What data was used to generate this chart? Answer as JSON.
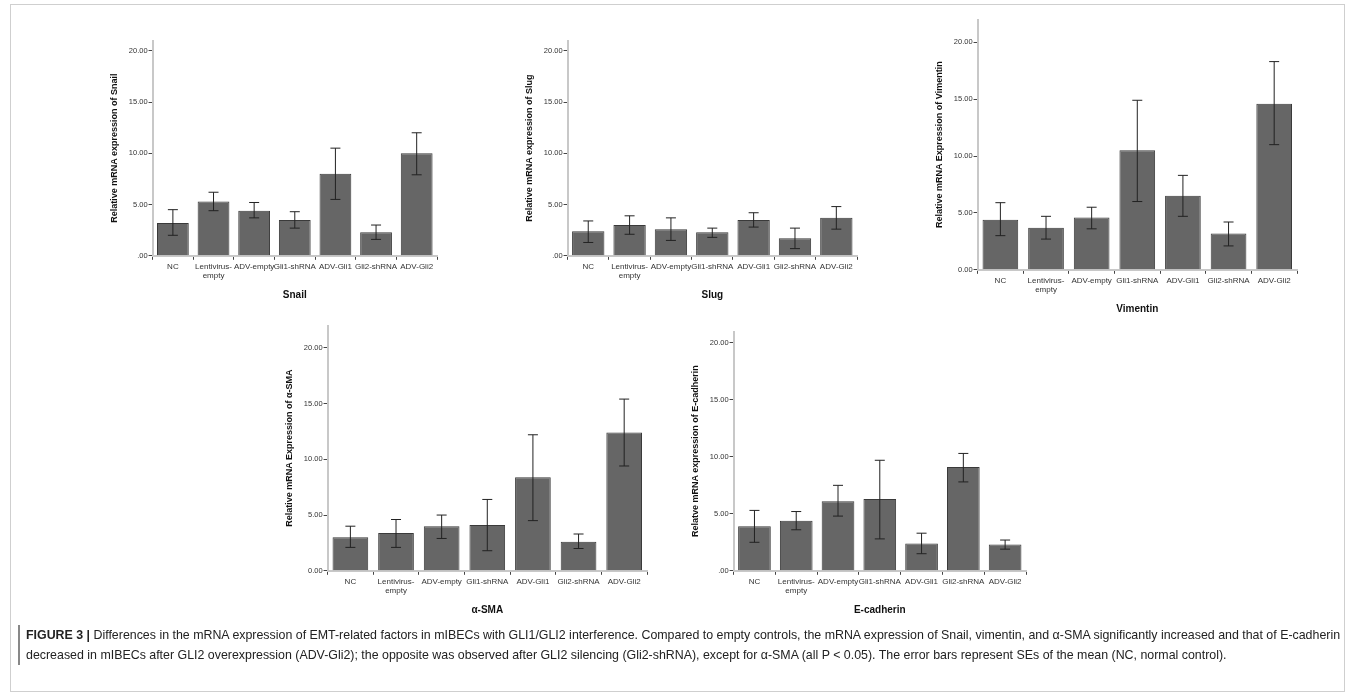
{
  "chart_data": [
    {
      "type": "bar",
      "xlabel": "Snail",
      "ylabel": "Relative mRNA expression of Snail",
      "categories": [
        "NC",
        "Lentivirus-empty",
        "ADV-empty",
        "Gli1-shRNA",
        "ADV-Gli1",
        "Gli2-shRNA",
        "ADV-Gli2"
      ],
      "color": "#666666",
      "values": [
        3.2,
        5.3,
        4.4,
        3.5,
        8.0,
        2.3,
        10.0
      ],
      "errors": [
        [
          2.0,
          4.5
        ],
        [
          4.4,
          6.2
        ],
        [
          3.7,
          5.2
        ],
        [
          2.7,
          4.3
        ],
        [
          5.5,
          10.5
        ],
        [
          1.6,
          3.0
        ],
        [
          7.9,
          12.0
        ]
      ],
      "ylim": [
        0,
        21
      ],
      "yticks": [
        {
          "value": 0,
          "label": ".00"
        },
        {
          "value": 5,
          "label": "5.00"
        },
        {
          "value": 10,
          "label": "10.00"
        },
        {
          "value": 15,
          "label": "15.00"
        },
        {
          "value": 20,
          "label": "20.00"
        }
      ],
      "annotations": [
        "FIGURE 3 |",
        "Differences in the mRNA expression of EMT-related factors in mIBECs with GLI1/GLI2 interference. Compared to empty controls, the mRNA expression of Snail, vimentin, and α-SMA significantly increased and that of E-cadherin decreased in mIBECs after GLI2 overexpression (ADV-Gli2); the opposite was observed after GLI2 silencing (Gli2-shRNA), except for α-SMA (all P < 0.05). The error bars represent SEs of the mean (NC, normal control)."
      ]
    },
    {
      "type": "bar",
      "xlabel": "Slug",
      "ylabel": "Relative mRNA expression of Slug",
      "categories": [
        "NC",
        "Lentivirus-empty",
        "ADV-empty",
        "Gli1-shRNA",
        "ADV-Gli1",
        "Gli2-shRNA",
        "ADV-Gli2"
      ],
      "color": "#666666",
      "values": [
        2.4,
        3.0,
        2.6,
        2.3,
        3.5,
        1.7,
        3.7
      ],
      "errors": [
        [
          1.3,
          3.4
        ],
        [
          2.1,
          3.9
        ],
        [
          1.5,
          3.7
        ],
        [
          1.8,
          2.7
        ],
        [
          2.8,
          4.2
        ],
        [
          0.7,
          2.7
        ],
        [
          2.6,
          4.8
        ]
      ],
      "ylim": [
        0,
        21
      ],
      "yticks": [
        {
          "value": 0,
          "label": ".00"
        },
        {
          "value": 5,
          "label": "5.00"
        },
        {
          "value": 10,
          "label": "10.00"
        },
        {
          "value": 15,
          "label": "15.00"
        },
        {
          "value": 20,
          "label": "20.00"
        }
      ]
    },
    {
      "type": "bar",
      "xlabel": "Vimentin",
      "ylabel": "Relative mRNA Expression of Vimentin",
      "categories": [
        "NC",
        "Lentivirus-empty",
        "ADV-empty",
        "Gli1-shRNA",
        "ADV-Gli1",
        "Gli2-shRNA",
        "ADV-Gli2"
      ],
      "color": "#666666",
      "values": [
        4.4,
        3.7,
        4.6,
        10.5,
        6.5,
        3.2,
        14.6
      ],
      "errors": [
        [
          3.0,
          5.9
        ],
        [
          2.7,
          4.7
        ],
        [
          3.6,
          5.5
        ],
        [
          6.0,
          14.9
        ],
        [
          4.7,
          8.3
        ],
        [
          2.1,
          4.2
        ],
        [
          11.0,
          18.3
        ]
      ],
      "ylim": [
        0,
        22
      ],
      "yticks": [
        {
          "value": 0,
          "label": "0.00"
        },
        {
          "value": 5,
          "label": "5.00"
        },
        {
          "value": 10,
          "label": "10.00"
        },
        {
          "value": 15,
          "label": "15.00"
        },
        {
          "value": 20,
          "label": "20.00"
        }
      ]
    },
    {
      "type": "bar",
      "xlabel": "α-SMA",
      "ylabel": "Relative mRNA Expression of α-SMA",
      "categories": [
        "NC",
        "Lentivirus-empty",
        "ADV-empty",
        "Gli1-shRNA",
        "ADV-Gli1",
        "Gli2-shRNA",
        "ADV-Gli2"
      ],
      "color": "#666666",
      "values": [
        3.0,
        3.4,
        4.0,
        4.1,
        8.4,
        2.6,
        12.4
      ],
      "errors": [
        [
          2.1,
          4.0
        ],
        [
          2.1,
          4.6
        ],
        [
          2.9,
          5.0
        ],
        [
          1.8,
          6.4
        ],
        [
          4.5,
          12.2
        ],
        [
          2.0,
          3.3
        ],
        [
          9.4,
          15.4
        ]
      ],
      "ylim": [
        0,
        22
      ],
      "yticks": [
        {
          "value": 0,
          "label": "0.00"
        },
        {
          "value": 5,
          "label": "5.00"
        },
        {
          "value": 10,
          "label": "10.00"
        },
        {
          "value": 15,
          "label": "15.00"
        },
        {
          "value": 20,
          "label": "20.00"
        }
      ]
    },
    {
      "type": "bar",
      "xlabel": "E-cadherin",
      "ylabel": "Relatve mRNA expression of E-cadherin",
      "categories": [
        "NC",
        "Lentivirus-empty",
        "ADV-empty",
        "Gli1-shRNA",
        "ADV-Gli1",
        "Gli2-shRNA",
        "ADV-Gli2"
      ],
      "color": "#666666",
      "values": [
        3.9,
        4.4,
        6.1,
        6.3,
        2.4,
        9.1,
        2.3
      ],
      "errors": [
        [
          2.5,
          5.3
        ],
        [
          3.6,
          5.2
        ],
        [
          4.8,
          7.5
        ],
        [
          2.8,
          9.7
        ],
        [
          1.5,
          3.3
        ],
        [
          7.8,
          10.3
        ],
        [
          1.9,
          2.7
        ]
      ],
      "ylim": [
        0,
        21
      ],
      "yticks": [
        {
          "value": 0,
          "label": ".00"
        },
        {
          "value": 5,
          "label": "5.00"
        },
        {
          "value": 10,
          "label": "10.00"
        },
        {
          "value": 15,
          "label": "15.00"
        },
        {
          "value": 20,
          "label": "20.00"
        }
      ]
    }
  ]
}
